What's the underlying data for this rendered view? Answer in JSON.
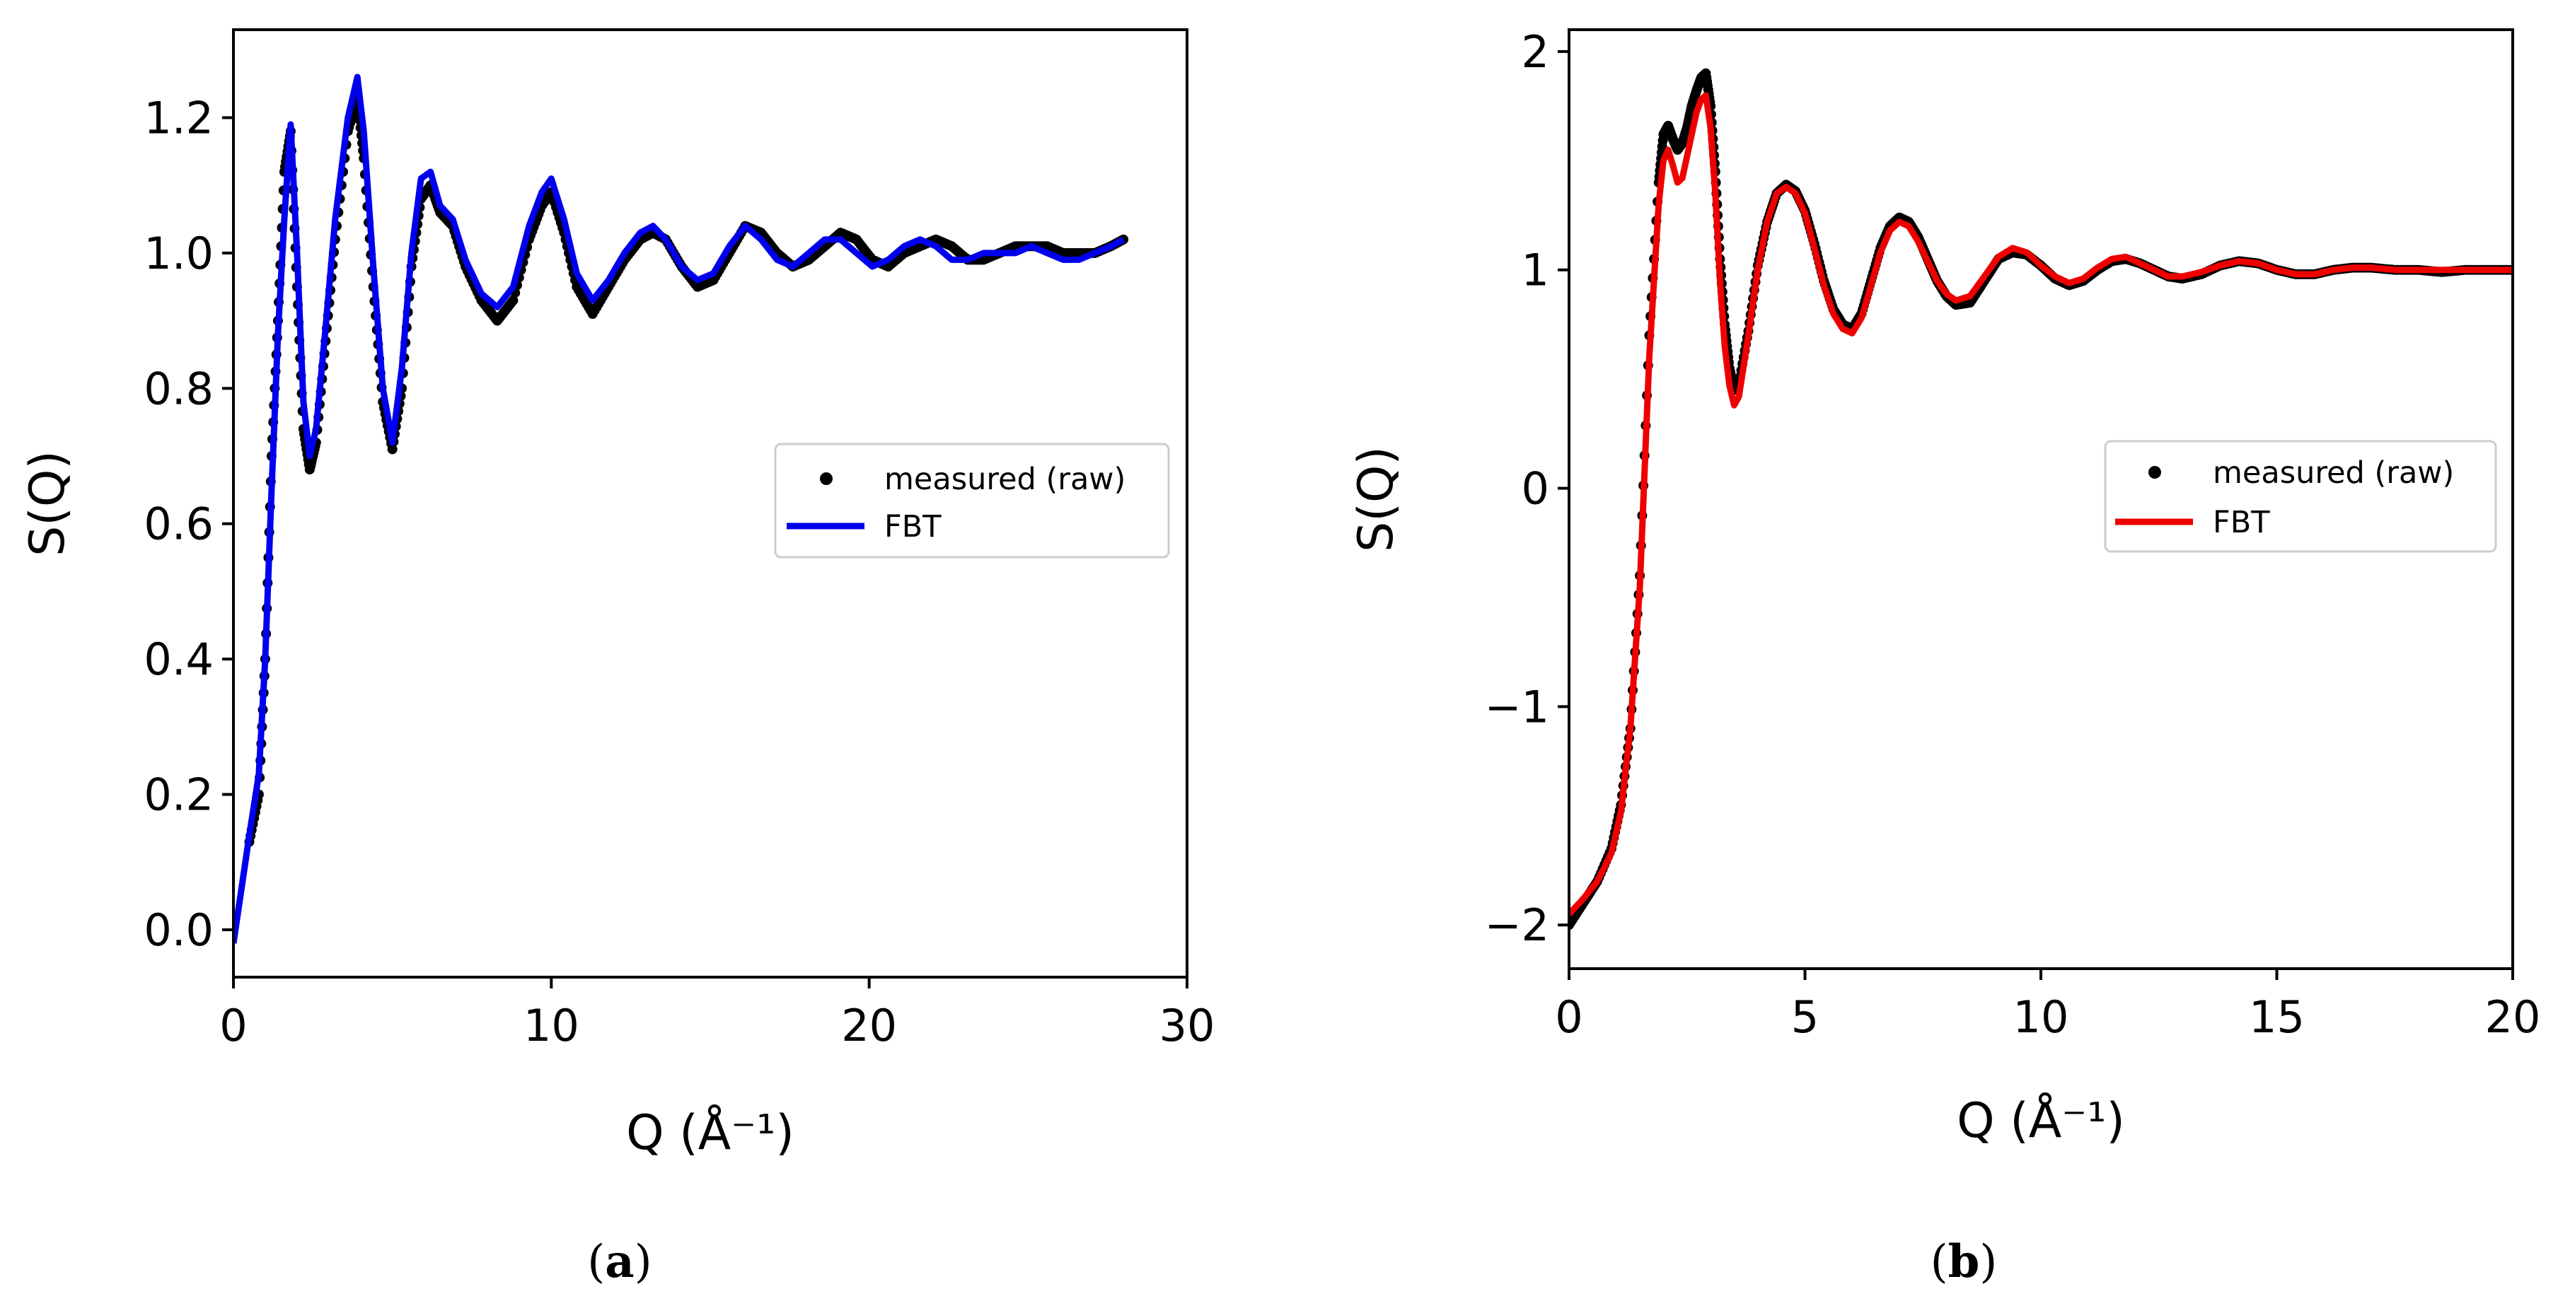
{
  "chart_data": [
    {
      "type": "line",
      "panel": "a",
      "caption_letter": "a",
      "xlabel": "Q (Å⁻¹)",
      "ylabel": "S(Q)",
      "xlim": [
        0,
        30
      ],
      "ylim": [
        -0.07,
        1.33
      ],
      "xticks": [
        0,
        10,
        20,
        30
      ],
      "yticks": [
        0.0,
        0.2,
        0.4,
        0.6,
        0.8,
        1.0,
        1.2
      ],
      "ytick_labels": [
        "0.0",
        "0.2",
        "0.4",
        "0.6",
        "0.8",
        "1.0",
        "1.2"
      ],
      "xtick_labels": [
        "0",
        "10",
        "20",
        "30"
      ],
      "grid": false,
      "legend_position": "right",
      "series": [
        {
          "name": "measured (raw)",
          "style": "markers",
          "color": "#000000",
          "x": [
            0.5,
            0.8,
            1.0,
            1.2,
            1.4,
            1.6,
            1.8,
            2.0,
            2.2,
            2.4,
            2.6,
            2.9,
            3.2,
            3.6,
            3.9,
            4.1,
            4.4,
            4.7,
            5.0,
            5.3,
            5.6,
            5.9,
            6.2,
            6.5,
            6.9,
            7.3,
            7.8,
            8.3,
            8.8,
            9.3,
            9.7,
            10.0,
            10.4,
            10.8,
            11.3,
            11.8,
            12.3,
            12.8,
            13.2,
            13.6,
            14.1,
            14.6,
            15.1,
            15.6,
            16.1,
            16.6,
            17.1,
            17.6,
            18.1,
            18.6,
            19.1,
            19.6,
            20.1,
            20.6,
            21.1,
            21.6,
            22.1,
            22.6,
            23.1,
            23.6,
            24.1,
            24.6,
            25.1,
            25.6,
            26.1,
            26.6,
            27.1,
            27.6,
            28.0
          ],
          "y": [
            0.13,
            0.2,
            0.4,
            0.7,
            0.9,
            1.12,
            1.18,
            0.95,
            0.74,
            0.68,
            0.72,
            0.87,
            1.02,
            1.18,
            1.23,
            1.14,
            0.95,
            0.78,
            0.71,
            0.8,
            0.98,
            1.08,
            1.1,
            1.06,
            1.04,
            0.98,
            0.93,
            0.9,
            0.93,
            1.02,
            1.07,
            1.09,
            1.03,
            0.95,
            0.91,
            0.95,
            0.99,
            1.02,
            1.03,
            1.02,
            0.98,
            0.95,
            0.96,
            1.0,
            1.04,
            1.03,
            1.0,
            0.98,
            0.99,
            1.01,
            1.03,
            1.02,
            0.99,
            0.98,
            1.0,
            1.01,
            1.02,
            1.01,
            0.99,
            0.99,
            1.0,
            1.01,
            1.01,
            1.01,
            1.0,
            1.0,
            1.0,
            1.01,
            1.02
          ]
        },
        {
          "name": "FBT",
          "style": "line",
          "color": "#0000ee",
          "x": [
            0.0,
            0.5,
            0.8,
            1.0,
            1.2,
            1.4,
            1.6,
            1.8,
            2.0,
            2.2,
            2.4,
            2.6,
            2.9,
            3.2,
            3.6,
            3.9,
            4.1,
            4.4,
            4.7,
            5.0,
            5.3,
            5.6,
            5.9,
            6.2,
            6.5,
            6.9,
            7.3,
            7.8,
            8.3,
            8.8,
            9.3,
            9.7,
            10.0,
            10.4,
            10.8,
            11.3,
            11.8,
            12.3,
            12.8,
            13.2,
            13.6,
            14.1,
            14.6,
            15.1,
            15.6,
            16.1,
            16.6,
            17.1,
            17.6,
            18.1,
            18.6,
            19.1,
            19.6,
            20.1,
            20.6,
            21.1,
            21.6,
            22.1,
            22.6,
            23.1,
            23.6,
            24.1,
            24.6,
            25.1,
            25.6,
            26.1,
            26.6,
            27.1,
            27.6,
            28.0
          ],
          "y": [
            -0.02,
            0.14,
            0.23,
            0.4,
            0.65,
            0.88,
            1.05,
            1.19,
            1.0,
            0.78,
            0.7,
            0.74,
            0.89,
            1.05,
            1.2,
            1.26,
            1.18,
            0.98,
            0.8,
            0.72,
            0.83,
            1.0,
            1.11,
            1.12,
            1.07,
            1.05,
            0.99,
            0.94,
            0.92,
            0.95,
            1.04,
            1.09,
            1.11,
            1.05,
            0.97,
            0.93,
            0.96,
            1.0,
            1.03,
            1.04,
            1.02,
            0.98,
            0.96,
            0.97,
            1.01,
            1.04,
            1.02,
            0.99,
            0.98,
            1.0,
            1.02,
            1.02,
            1.0,
            0.98,
            0.99,
            1.01,
            1.02,
            1.01,
            0.99,
            0.99,
            1.0,
            1.0,
            1.0,
            1.01,
            1.0,
            0.99,
            0.99,
            1.0,
            1.01,
            1.02
          ]
        }
      ]
    },
    {
      "type": "line",
      "panel": "b",
      "caption_letter": "b",
      "xlabel": "Q (Å⁻¹)",
      "ylabel": "S(Q)",
      "xlim": [
        0,
        20
      ],
      "ylim": [
        -2.2,
        2.1
      ],
      "xticks": [
        0,
        5,
        10,
        15,
        20
      ],
      "yticks": [
        -2,
        -1,
        0,
        1,
        2
      ],
      "ytick_labels": [
        "−2",
        "−1",
        "0",
        "1",
        "2"
      ],
      "xtick_labels": [
        "0",
        "5",
        "10",
        "15",
        "20"
      ],
      "grid": false,
      "legend_position": "right",
      "series": [
        {
          "name": "measured (raw)",
          "style": "markers",
          "color": "#000000",
          "x": [
            0.0,
            0.3,
            0.6,
            0.9,
            1.1,
            1.3,
            1.5,
            1.7,
            1.9,
            2.0,
            2.1,
            2.2,
            2.3,
            2.4,
            2.5,
            2.6,
            2.7,
            2.8,
            2.9,
            3.0,
            3.1,
            3.2,
            3.3,
            3.4,
            3.5,
            3.6,
            3.8,
            4.0,
            4.2,
            4.4,
            4.6,
            4.8,
            5.0,
            5.2,
            5.4,
            5.6,
            5.8,
            6.0,
            6.2,
            6.4,
            6.6,
            6.8,
            7.0,
            7.2,
            7.4,
            7.6,
            7.8,
            8.0,
            8.2,
            8.5,
            8.8,
            9.1,
            9.4,
            9.7,
            10.0,
            10.3,
            10.6,
            10.9,
            11.2,
            11.5,
            11.8,
            12.1,
            12.4,
            12.7,
            13.0,
            13.4,
            13.8,
            14.2,
            14.6,
            15.0,
            15.4,
            15.8,
            16.2,
            16.6,
            17.0,
            17.5,
            18.0,
            18.5,
            19.0,
            19.5,
            20.0
          ],
          "y": [
            -2.0,
            -1.9,
            -1.8,
            -1.65,
            -1.45,
            -1.1,
            -0.4,
            0.7,
            1.4,
            1.62,
            1.66,
            1.6,
            1.55,
            1.58,
            1.65,
            1.75,
            1.82,
            1.88,
            1.9,
            1.75,
            1.45,
            1.05,
            0.75,
            0.55,
            0.45,
            0.48,
            0.72,
            1.02,
            1.22,
            1.35,
            1.39,
            1.36,
            1.27,
            1.12,
            0.95,
            0.82,
            0.75,
            0.73,
            0.8,
            0.95,
            1.1,
            1.2,
            1.24,
            1.22,
            1.15,
            1.05,
            0.95,
            0.88,
            0.84,
            0.85,
            0.95,
            1.05,
            1.08,
            1.07,
            1.02,
            0.96,
            0.93,
            0.95,
            1.0,
            1.04,
            1.05,
            1.03,
            1.0,
            0.97,
            0.96,
            0.98,
            1.02,
            1.04,
            1.03,
            1.0,
            0.98,
            0.98,
            1.0,
            1.01,
            1.01,
            1.0,
            1.0,
            0.99,
            1.0,
            1.0,
            1.0
          ]
        },
        {
          "name": "FBT",
          "style": "line",
          "color": "#ee0000",
          "x": [
            0.0,
            0.3,
            0.6,
            0.9,
            1.1,
            1.3,
            1.5,
            1.7,
            1.9,
            2.0,
            2.1,
            2.2,
            2.3,
            2.4,
            2.5,
            2.6,
            2.7,
            2.8,
            2.9,
            3.0,
            3.1,
            3.2,
            3.3,
            3.4,
            3.5,
            3.6,
            3.8,
            4.0,
            4.2,
            4.4,
            4.6,
            4.8,
            5.0,
            5.2,
            5.4,
            5.6,
            5.8,
            6.0,
            6.2,
            6.4,
            6.6,
            6.8,
            7.0,
            7.2,
            7.4,
            7.6,
            7.8,
            8.0,
            8.2,
            8.5,
            8.8,
            9.1,
            9.4,
            9.7,
            10.0,
            10.3,
            10.6,
            10.9,
            11.2,
            11.5,
            11.8,
            12.1,
            12.4,
            12.7,
            13.0,
            13.4,
            13.8,
            14.2,
            14.6,
            15.0,
            15.4,
            15.8,
            16.2,
            16.6,
            17.0,
            17.5,
            18.0,
            18.5,
            19.0,
            19.5,
            20.0
          ],
          "y": [
            -1.95,
            -1.88,
            -1.8,
            -1.67,
            -1.48,
            -1.1,
            -0.45,
            0.6,
            1.3,
            1.5,
            1.55,
            1.48,
            1.4,
            1.42,
            1.52,
            1.62,
            1.72,
            1.78,
            1.8,
            1.65,
            1.35,
            0.95,
            0.65,
            0.47,
            0.38,
            0.42,
            0.7,
            1.0,
            1.22,
            1.35,
            1.38,
            1.35,
            1.26,
            1.1,
            0.93,
            0.8,
            0.73,
            0.71,
            0.78,
            0.93,
            1.08,
            1.18,
            1.22,
            1.2,
            1.13,
            1.04,
            0.95,
            0.89,
            0.86,
            0.88,
            0.97,
            1.06,
            1.1,
            1.08,
            1.02,
            0.97,
            0.94,
            0.96,
            1.01,
            1.05,
            1.06,
            1.03,
            1.0,
            0.97,
            0.97,
            0.99,
            1.02,
            1.04,
            1.03,
            1.0,
            0.98,
            0.98,
            1.0,
            1.01,
            1.01,
            1.0,
            1.0,
            1.0,
            1.0,
            1.0,
            1.0
          ]
        }
      ]
    }
  ]
}
